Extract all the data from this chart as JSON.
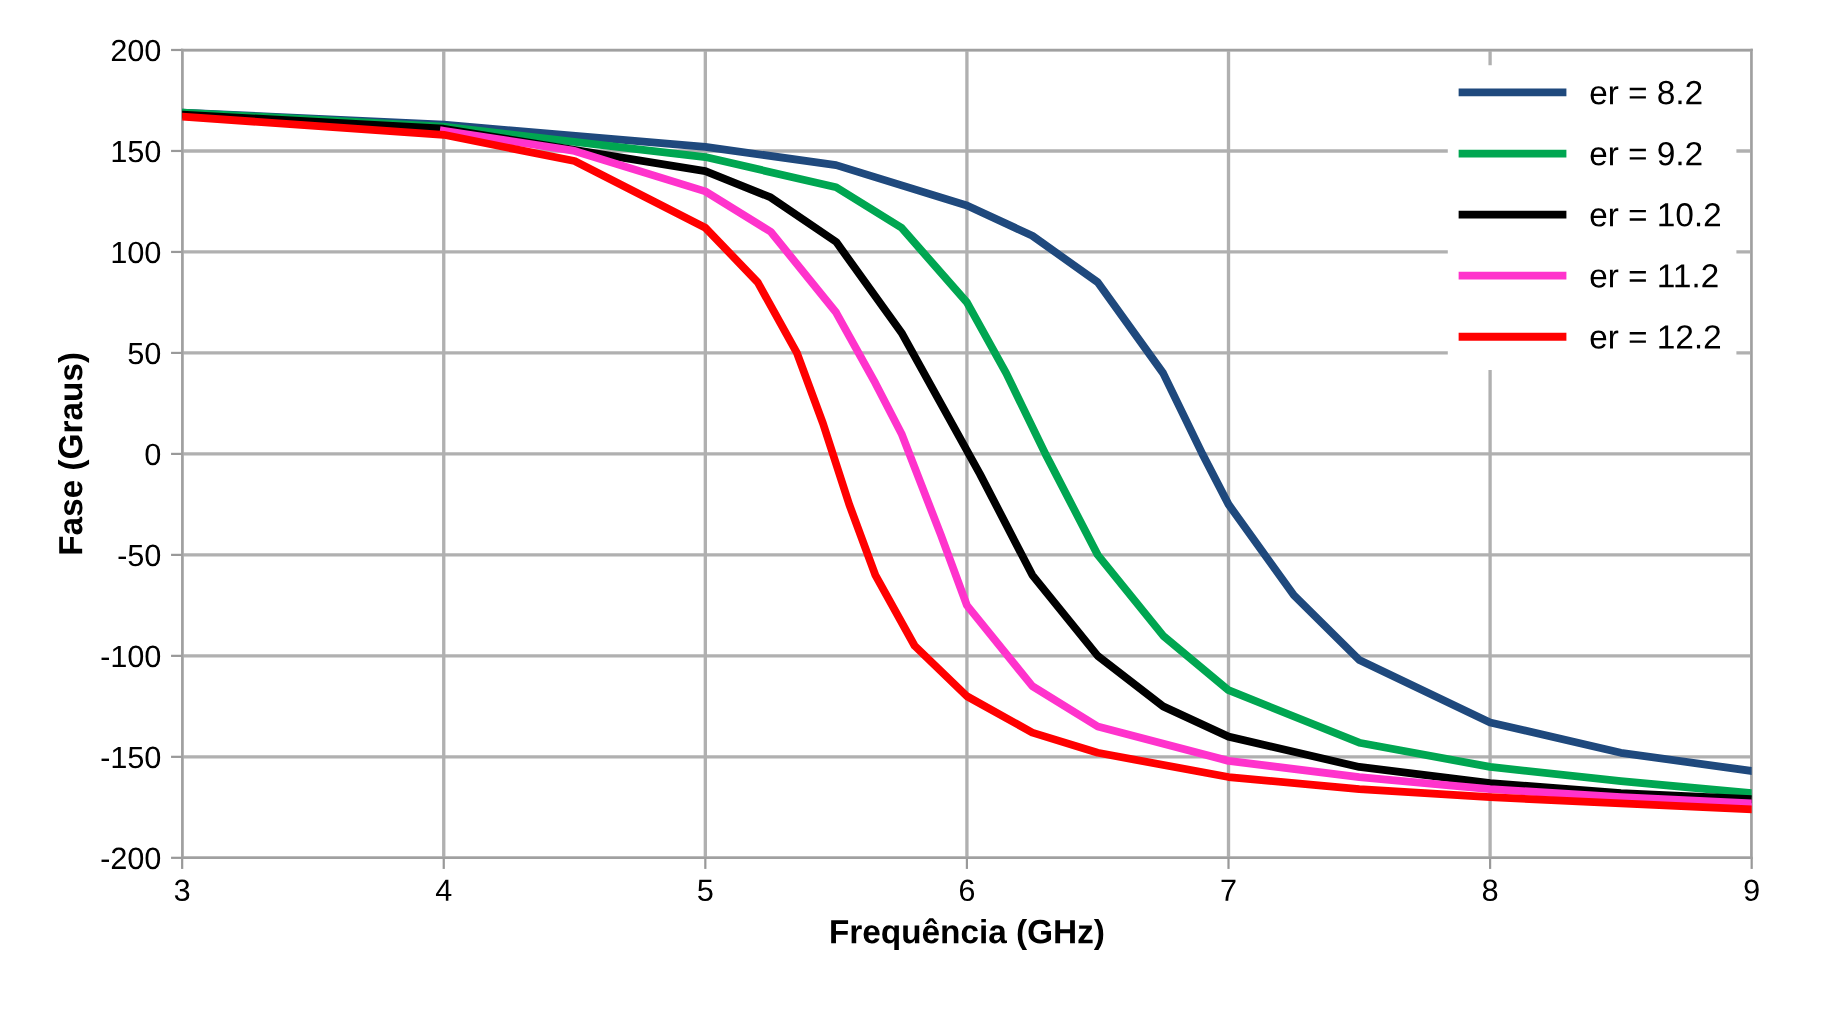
{
  "chart_data": {
    "type": "line",
    "xlabel": "Frequência (GHz)",
    "ylabel": "Fase (Graus)",
    "xlim": [
      3,
      9
    ],
    "xticks": [
      3,
      4,
      5,
      6,
      7,
      8,
      9
    ],
    "ylim": [
      -200,
      200
    ],
    "yticks": [
      -200,
      -150,
      -100,
      -50,
      0,
      50,
      100,
      150,
      200
    ],
    "grid": true,
    "legend": "top right",
    "marker": "none",
    "line_style": "solid",
    "series": [
      {
        "name": "er = 8.2",
        "color": "#1f497d",
        "x": [
          3,
          4,
          5,
          5.5,
          6,
          6.25,
          6.5,
          6.75,
          6.9,
          7,
          7.25,
          7.5,
          8,
          8.5,
          9
        ],
        "values": [
          169,
          163,
          152,
          143,
          123,
          108,
          85,
          40,
          0,
          -25,
          -70,
          -102,
          -133,
          -148,
          -157
        ]
      },
      {
        "name": "er = 9.2",
        "color": "#00a651",
        "x": [
          3,
          4,
          5,
          5.5,
          5.75,
          6,
          6.15,
          6.3,
          6.5,
          6.75,
          7,
          7.5,
          8,
          8.5,
          9
        ],
        "values": [
          169,
          162,
          147,
          132,
          112,
          75,
          40,
          0,
          -50,
          -90,
          -117,
          -143,
          -155,
          -162,
          -168
        ]
      },
      {
        "name": "er = 10.2",
        "color": "#000000",
        "x": [
          3,
          4,
          5,
          5.25,
          5.5,
          5.75,
          5.9,
          6.05,
          6.25,
          6.5,
          6.75,
          7,
          7.5,
          8,
          8.5,
          9
        ],
        "values": [
          168,
          161,
          140,
          127,
          105,
          60,
          25,
          -10,
          -60,
          -100,
          -125,
          -140,
          -155,
          -163,
          -168,
          -171
        ]
      },
      {
        "name": "er = 11.2",
        "color": "#ff33cc",
        "x": [
          4,
          4.5,
          5,
          5.25,
          5.5,
          5.65,
          5.75,
          5.9,
          6,
          6.25,
          6.5,
          7,
          7.5,
          8,
          8.5,
          9
        ],
        "values": [
          160,
          150,
          130,
          110,
          70,
          35,
          10,
          -40,
          -75,
          -115,
          -135,
          -152,
          -160,
          -166,
          -170,
          -173
        ]
      },
      {
        "name": "er = 12.2",
        "color": "#ff0000",
        "x": [
          3,
          4,
          4.5,
          5,
          5.2,
          5.35,
          5.45,
          5.55,
          5.65,
          5.8,
          6,
          6.25,
          6.5,
          7,
          7.5,
          8,
          8.5,
          9
        ],
        "values": [
          167,
          158,
          145,
          112,
          85,
          50,
          15,
          -25,
          -60,
          -95,
          -120,
          -138,
          -148,
          -160,
          -166,
          -170,
          -173,
          -176
        ]
      }
    ]
  }
}
